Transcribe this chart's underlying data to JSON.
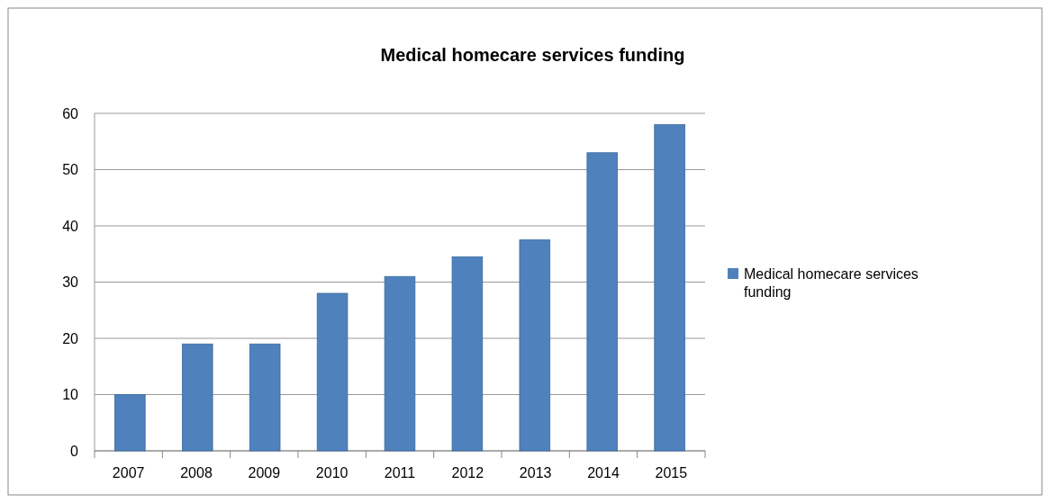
{
  "chart_data": {
    "type": "bar",
    "title": "Medical homecare services funding",
    "categories": [
      "2007",
      "2008",
      "2009",
      "2010",
      "2011",
      "2012",
      "2013",
      "2014",
      "2015"
    ],
    "series": [
      {
        "name": "Medical homecare services funding",
        "color": "#4f81bd",
        "values": [
          10,
          19,
          19,
          28,
          31,
          34.5,
          37.5,
          53,
          58
        ]
      }
    ],
    "ylim": [
      0,
      60
    ],
    "yticks": [
      0,
      10,
      20,
      30,
      40,
      50,
      60
    ],
    "grid": "y",
    "legend": "right"
  }
}
